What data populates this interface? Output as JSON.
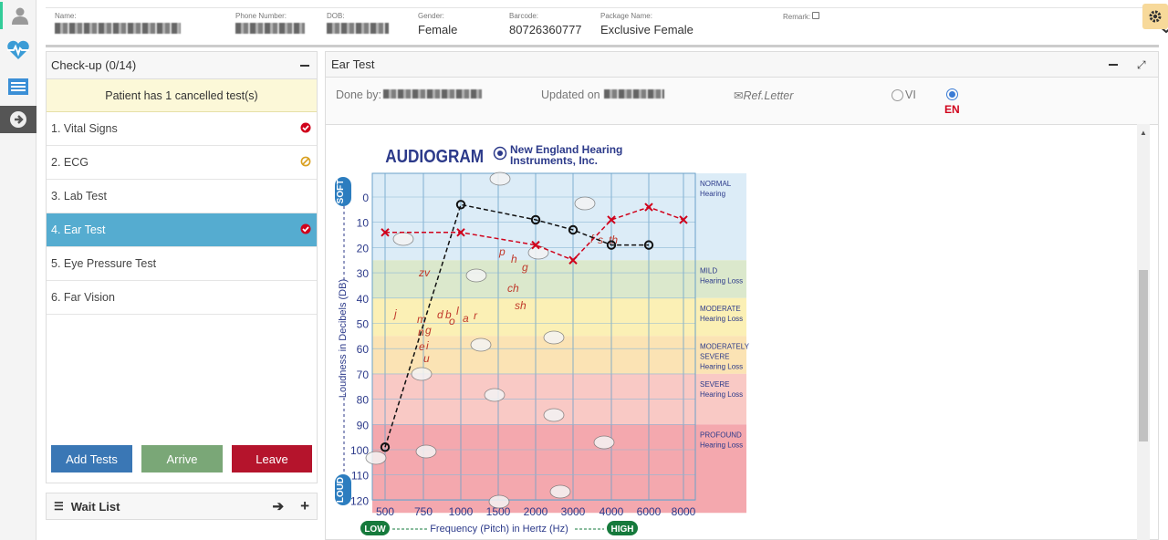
{
  "header": {
    "name_label": "Name:",
    "phone_label": "Phone Number:",
    "dob_label": "DOB:",
    "gender_label": "Gender:",
    "gender_value": "Female",
    "barcode_label": "Barcode:",
    "barcode_value": "80726360777",
    "package_label": "Package Name:",
    "package_value": "Exclusive Female",
    "remark_label": "Remark:"
  },
  "checkup": {
    "title": "Check-up (0/14)",
    "notice": "Patient has 1 cancelled test(s)",
    "items": [
      {
        "label": "1. Vital Signs",
        "status": "done"
      },
      {
        "label": "2. ECG",
        "status": "cancelled"
      },
      {
        "label": "3. Lab Test",
        "status": ""
      },
      {
        "label": "4. Ear Test",
        "status": "done"
      },
      {
        "label": "5. Eye Pressure Test",
        "status": ""
      },
      {
        "label": "6. Far Vision",
        "status": ""
      }
    ],
    "add_tests": "Add Tests",
    "arrive": "Arrive",
    "leave": "Leave"
  },
  "waitlist": {
    "label": "Wait List"
  },
  "ear_test": {
    "title": "Ear Test",
    "done_by_label": "Done by:",
    "updated_label": "Updated on",
    "ref_letter": "Ref.Letter",
    "lang_vi": "VI",
    "lang_en": "EN"
  },
  "audiogram": {
    "title": "AUDIOGRAM",
    "brand_line1": "New England Hearing",
    "brand_line2": "Instruments, Inc.",
    "soft": "SOFT",
    "loud": "LOUD",
    "low": "LOW",
    "high": "HIGH",
    "y_axis_label": "Loudness in Decibels (DB)",
    "x_axis_label": "Frequency (Pitch) in Hertz (Hz)",
    "zones": [
      {
        "l1": "NORMAL",
        "l2": "Hearing"
      },
      {
        "l1": "MILD",
        "l2": "Hearing Loss"
      },
      {
        "l1": "MODERATE",
        "l2": "Hearing Loss"
      },
      {
        "l1": "MODERATELY",
        "l2": "SEVERE",
        "l3": "Hearing Loss"
      },
      {
        "l1": "SEVERE",
        "l2": "Hearing Loss"
      },
      {
        "l1": "PROFOUND",
        "l2": "Hearing Loss"
      }
    ],
    "x_ticks": [
      "500",
      "750",
      "1000",
      "1500",
      "2000",
      "3000",
      "4000",
      "6000",
      "8000"
    ],
    "y_ticks": [
      "0",
      "10",
      "20",
      "30",
      "40",
      "50",
      "60",
      "70",
      "80",
      "90",
      "100",
      "110",
      "120"
    ],
    "sounds": [
      "zv",
      "j",
      "m",
      "d",
      "b",
      "o",
      "l",
      "a",
      "r",
      "n",
      "g",
      "e",
      "i",
      "u",
      "p",
      "h",
      "g",
      "ch",
      "sh",
      "f",
      "s",
      "th"
    ],
    "left_ear_x": [
      {
        "f": "500",
        "db": -14
      },
      {
        "f": "1000",
        "db": -14
      },
      {
        "f": "2000",
        "db": -19
      },
      {
        "f": "3000",
        "db": -25
      },
      {
        "f": "4000",
        "db": -9
      },
      {
        "f": "6000",
        "db": -4
      },
      {
        "f": "8000",
        "db": -9
      }
    ],
    "right_ear_o": [
      {
        "f": "500",
        "db": -99
      },
      {
        "f": "1000",
        "db": -3
      },
      {
        "f": "2000",
        "db": -9
      },
      {
        "f": "3000",
        "db": -13
      },
      {
        "f": "4000",
        "db": -19
      },
      {
        "f": "6000",
        "db": -19
      }
    ]
  },
  "colors": {
    "active_item": "#55acd0",
    "add_btn": "#3a77b5",
    "arrive_btn": "#7aa777",
    "leave_btn": "#b5142c",
    "gear_bg": "#f7d99a",
    "en_red": "#d0021b"
  }
}
